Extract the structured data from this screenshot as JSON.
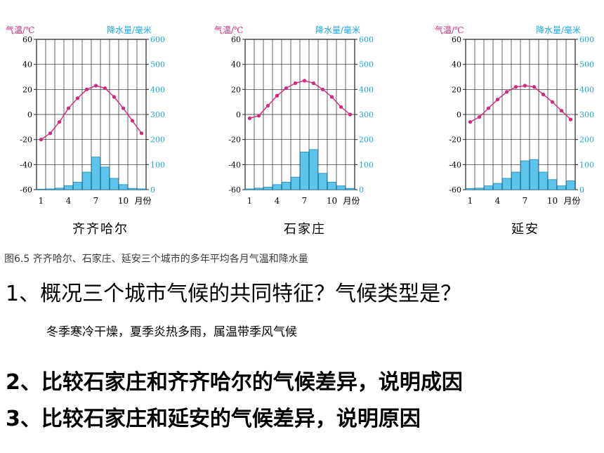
{
  "chart_data": [
    {
      "type": "bar+line",
      "title": "齐齐哈尔",
      "ylabel_left": "气温/℃",
      "ylabel_right": "降水量/毫米",
      "xlabel": "月份",
      "x_ticks": [
        "1",
        "4",
        "7",
        "10"
      ],
      "x_unit": "月份",
      "ylim_left": [
        -60,
        60
      ],
      "yticks_left": [
        "60",
        "40",
        "20",
        "0",
        "-20",
        "-40",
        "-60"
      ],
      "ylim_right": [
        0,
        600
      ],
      "yticks_right": [
        "600",
        "500",
        "400",
        "300",
        "200",
        "100",
        "0"
      ],
      "months": [
        1,
        2,
        3,
        4,
        5,
        6,
        7,
        8,
        9,
        10,
        11,
        12
      ],
      "temperature": [
        -20,
        -15,
        -6,
        5,
        13,
        20,
        23,
        21,
        14,
        5,
        -5,
        -15
      ],
      "precipitation": [
        2,
        3,
        6,
        16,
        30,
        70,
        130,
        90,
        45,
        20,
        5,
        3
      ],
      "grid": true
    },
    {
      "type": "bar+line",
      "title": "石家庄",
      "ylabel_left": "气温/℃",
      "ylabel_right": "降水量/毫米",
      "xlabel": "月份",
      "x_ticks": [
        "1",
        "4",
        "7",
        "10"
      ],
      "x_unit": "月份",
      "ylim_left": [
        -60,
        60
      ],
      "yticks_left": [
        "60",
        "40",
        "20",
        "0",
        "-20",
        "-40",
        "-60"
      ],
      "ylim_right": [
        0,
        600
      ],
      "yticks_right": [
        "600",
        "500",
        "400",
        "300",
        "200",
        "100",
        "0"
      ],
      "months": [
        1,
        2,
        3,
        4,
        5,
        6,
        7,
        8,
        9,
        10,
        11,
        12
      ],
      "temperature": [
        -3,
        -1,
        7,
        15,
        21,
        25,
        27,
        25,
        20,
        14,
        6,
        0
      ],
      "precipitation": [
        3,
        6,
        10,
        20,
        30,
        50,
        150,
        160,
        65,
        30,
        15,
        5
      ],
      "grid": true
    },
    {
      "type": "bar+line",
      "title": "延安",
      "ylabel_left": "气温/℃",
      "ylabel_right": "降水量/毫米",
      "xlabel": "月份",
      "x_ticks": [
        "1",
        "4",
        "7",
        "10"
      ],
      "x_unit": "月份",
      "ylim_left": [
        -60,
        60
      ],
      "yticks_left": [
        "60",
        "40",
        "20",
        "0",
        "-20",
        "-40",
        "-60"
      ],
      "ylim_right": [
        0,
        600
      ],
      "yticks_right": [
        "600",
        "500",
        "400",
        "300",
        "200",
        "100",
        "0"
      ],
      "months": [
        1,
        2,
        3,
        4,
        5,
        6,
        7,
        8,
        9,
        10,
        11,
        12
      ],
      "temperature": [
        -6,
        -2,
        5,
        12,
        18,
        22,
        23,
        22,
        16,
        10,
        3,
        -4
      ],
      "precipitation": [
        4,
        6,
        15,
        25,
        45,
        70,
        115,
        120,
        70,
        40,
        15,
        35
      ],
      "grid": true
    }
  ],
  "colors": {
    "temperature_line": "#d6247f",
    "precipitation_bar": "#5ec4ec",
    "precipitation_bar_stroke": "#1f87b5",
    "axis_label": "#1aa7dc",
    "grid": "#222222"
  },
  "caption": "图6.5  齐齐哈尔、石家庄、延安三个城市的多年平均各月气温和降水量",
  "questions": {
    "q1": "1、概况三个城市气候的共同特征？气候类型是？",
    "a1": "冬季寒冷干燥，夏季炎热多雨，属温带季风气候",
    "q2": "2、比较石家庄和齐齐哈尔的气候差异，说明成因",
    "q3": "3、比较石家庄和延安的气候差异，说明原因"
  }
}
